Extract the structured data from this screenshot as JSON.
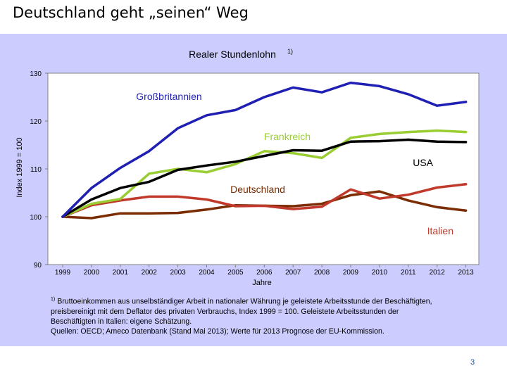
{
  "slide": {
    "title": "Deutschland geht „seinen“ Weg",
    "page_number": "3"
  },
  "footnote": {
    "marker": "1)",
    "lines": [
      "Bruttoeinkommen aus unselbständiger Arbeit in nationaler Währung je geleistete Arbeitsstunde der Beschäftigten,",
      "preisbereinigt mit dem Deflator des privaten Verbrauchs, Index 1999 = 100. Geleistete Arbeitsstunden der",
      "Beschäftigten in Italien: eigene Schätzung.",
      "Quellen: OECD; Ameco Datenbank (Stand Mai 2013); Werte für 2013 Prognose der EU-Kommission."
    ]
  },
  "colors": {
    "panel_background": "#ccccff",
    "plot_background": "#ffffff"
  },
  "chart_data": {
    "type": "line",
    "title": "Realer Stundenlohn",
    "title_superscript": "1)",
    "xlabel": "Jahre",
    "ylabel": "Index 1999 = 100",
    "x": [
      "1999",
      "2000",
      "2001",
      "2002",
      "2003",
      "2004",
      "2005",
      "2006",
      "2007",
      "2008",
      "2009",
      "2010",
      "2011",
      "2012",
      "2013"
    ],
    "ylim": [
      90,
      130
    ],
    "yticks": [
      90,
      100,
      110,
      120,
      130
    ],
    "grid": false,
    "series": [
      {
        "name": "Großbritannien",
        "color": "#1f1fb4",
        "values": [
          100,
          106,
          110.2,
          113.7,
          118.5,
          121.2,
          122.3,
          125.0,
          127.0,
          126.0,
          128.0,
          127.3,
          125.6,
          123.2,
          124.0
        ]
      },
      {
        "name": "Frankreich",
        "color": "#9acd32",
        "values": [
          100,
          102.7,
          103.7,
          109.0,
          110.0,
          109.3,
          111.0,
          113.7,
          113.3,
          112.3,
          116.5,
          117.3,
          117.7,
          118.0,
          117.7
        ]
      },
      {
        "name": "USA",
        "color": "#000000",
        "values": [
          100,
          103.6,
          106.0,
          107.3,
          109.8,
          110.7,
          111.5,
          112.7,
          113.9,
          113.8,
          115.7,
          115.8,
          116.1,
          115.7,
          115.6
        ]
      },
      {
        "name": "Deutschland",
        "color": "#7b2c00",
        "values": [
          100,
          99.7,
          100.7,
          100.7,
          100.8,
          101.5,
          102.4,
          102.3,
          102.2,
          102.7,
          104.5,
          105.3,
          103.4,
          102.0,
          101.3
        ]
      },
      {
        "name": "Italien",
        "color": "#c0392b",
        "values": [
          100,
          102.4,
          103.4,
          104.2,
          104.2,
          103.6,
          102.2,
          102.3,
          101.6,
          102.1,
          105.7,
          103.8,
          104.6,
          106.1,
          106.8
        ]
      }
    ]
  }
}
